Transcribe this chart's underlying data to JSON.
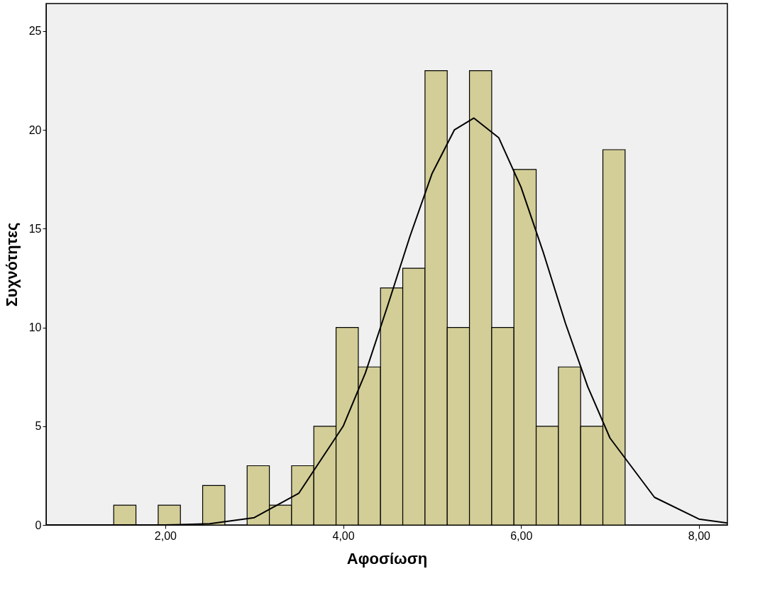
{
  "chart_data": {
    "type": "histogram",
    "xlabel": "Αφοσίωση",
    "ylabel": "Συχνότητες",
    "bins": [
      1.42,
      1.67,
      1.92,
      2.17,
      2.42,
      2.67,
      2.92,
      3.17,
      3.42,
      3.67,
      3.92,
      4.17,
      4.42,
      4.67,
      4.92,
      5.17,
      5.42,
      5.67,
      5.92,
      6.17,
      6.42,
      6.67,
      6.92,
      7.17
    ],
    "values": [
      1,
      0,
      1,
      0,
      2,
      0,
      3,
      1,
      3,
      5,
      10,
      8,
      12,
      13,
      23,
      10,
      23,
      10,
      18,
      5,
      8,
      5,
      19
    ],
    "color": "#d3ce97",
    "series": [
      {
        "type": "line",
        "color": "#000000",
        "x": [
          0.66,
          2.0,
          2.5,
          3.0,
          3.5,
          4.0,
          4.25,
          4.5,
          4.75,
          5.0,
          5.25,
          5.47,
          5.75,
          6.0,
          6.25,
          6.5,
          6.75,
          7.0,
          7.5,
          8.0,
          8.32
        ],
        "values": [
          0.0,
          0.0,
          0.06,
          0.37,
          1.6,
          5.0,
          7.7,
          11.1,
          14.6,
          17.8,
          20.0,
          20.6,
          19.6,
          17.1,
          13.8,
          10.2,
          7.0,
          4.4,
          1.4,
          0.3,
          0.1
        ]
      }
    ],
    "xlim": [
      0.66,
      8.32
    ],
    "ylim": [
      0,
      26.4
    ],
    "xticks": [
      {
        "value": 2,
        "label": "2,00"
      },
      {
        "value": 4,
        "label": "4,00"
      },
      {
        "value": 6,
        "label": "6,00"
      },
      {
        "value": 8,
        "label": "8,00"
      }
    ],
    "yticks": [
      0,
      5,
      10,
      15,
      20,
      25
    ],
    "grid": false
  }
}
